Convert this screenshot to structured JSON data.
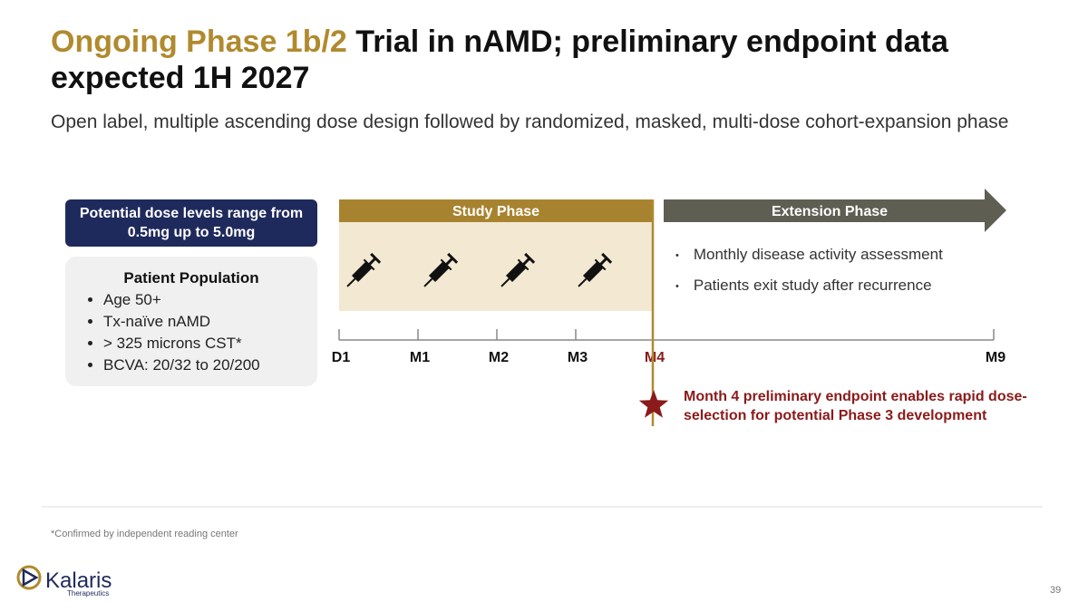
{
  "header": {
    "title_highlight": "Ongoing Phase 1b/2",
    "title_rest": "Trial in nAMD; preliminary endpoint data expected 1H 2027",
    "subtitle": "Open label, multiple ascending dose design followed by randomized, masked, multi-dose cohort-expansion phase"
  },
  "dose_box": "Potential dose levels range from 0.5mg up to 5.0mg",
  "population": {
    "title": "Patient Population",
    "items": [
      "Age 50+",
      "Tx-naïve nAMD",
      "> 325 microns CST*",
      "BCVA: 20/32 to 20/200"
    ]
  },
  "study_phase": "Study Phase",
  "extension_phase": {
    "label": "Extension Phase",
    "bullets": [
      "Monthly disease activity assessment",
      "Patients exit study after recurrence"
    ]
  },
  "timeline": [
    "D1",
    "M1",
    "M2",
    "M3",
    "M4",
    "M9"
  ],
  "endpoint_note": "Month 4 preliminary endpoint enables rapid dose-selection for potential Phase 3 development",
  "footnote": "*Confirmed by independent reading center",
  "logo": {
    "name": "Kalaris",
    "sub": "Therapeutics"
  },
  "page_number": "39"
}
